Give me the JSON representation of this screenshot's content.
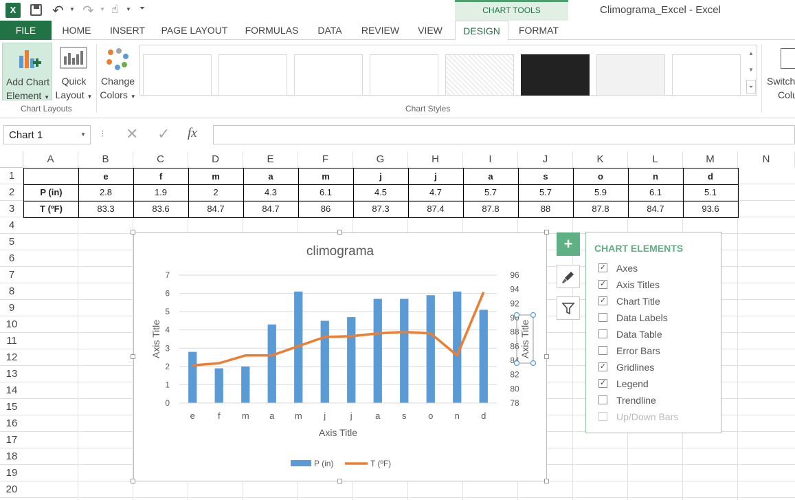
{
  "window": {
    "title": "Climograma_Excel - Excel",
    "contextual_group": "CHART TOOLS"
  },
  "tabs": [
    "FILE",
    "HOME",
    "INSERT",
    "PAGE LAYOUT",
    "FORMULAS",
    "DATA",
    "REVIEW",
    "VIEW",
    "DESIGN",
    "FORMAT"
  ],
  "ribbon": {
    "add_chart_element": [
      "Add Chart",
      "Element"
    ],
    "quick_layout": [
      "Quick",
      "Layout"
    ],
    "change_colors": [
      "Change",
      "Colors"
    ],
    "switch_row_col": [
      "Switch",
      "Colu"
    ],
    "group_chart_layouts": "Chart Layouts",
    "group_chart_styles": "Chart Styles"
  },
  "formula_bar": {
    "name_box": "Chart 1",
    "fx": "fx",
    "value": ""
  },
  "columns": [
    "A",
    "B",
    "C",
    "D",
    "E",
    "F",
    "G",
    "H",
    "I",
    "J",
    "K",
    "L",
    "M",
    "N"
  ],
  "rows": [
    "1",
    "2",
    "3",
    "4",
    "5",
    "6",
    "7",
    "8",
    "9",
    "10",
    "11",
    "12",
    "13",
    "14",
    "15",
    "16",
    "17",
    "18",
    "19",
    "20"
  ],
  "sheet": {
    "row1": [
      "",
      "e",
      "f",
      "m",
      "a",
      "m",
      "j",
      "j",
      "a",
      "s",
      "o",
      "n",
      "d"
    ],
    "row2": [
      "P (in)",
      "2.8",
      "1.9",
      "2",
      "4.3",
      "6.1",
      "4.5",
      "4.7",
      "5.7",
      "5.7",
      "5.9",
      "6.1",
      "5.1"
    ],
    "row3": [
      "T (ºF)",
      "83.3",
      "83.6",
      "84.7",
      "84.7",
      "86",
      "87.3",
      "87.4",
      "87.8",
      "88",
      "87.8",
      "84.7",
      "93.6"
    ]
  },
  "chart_data": {
    "type": "bar",
    "title": "climograma",
    "xlabel": "Axis Title",
    "ylabel": "Axis Title",
    "y2label": "Axis Title",
    "categories": [
      "e",
      "f",
      "m",
      "a",
      "m",
      "j",
      "j",
      "a",
      "s",
      "o",
      "n",
      "d"
    ],
    "ylim": [
      0,
      7
    ],
    "y_ticks": [
      "0",
      "1",
      "2",
      "3",
      "4",
      "5",
      "6",
      "7"
    ],
    "y2lim": [
      78,
      96
    ],
    "y2_ticks": [
      "78",
      "80",
      "82",
      "84",
      "86",
      "88",
      "90",
      "92",
      "94",
      "96"
    ],
    "series": [
      {
        "name": "P (in)",
        "type": "bar",
        "axis": "left",
        "color": "#5b9bd5",
        "values": [
          2.8,
          1.9,
          2,
          4.3,
          6.1,
          4.5,
          4.7,
          5.7,
          5.7,
          5.9,
          6.1,
          5.1
        ]
      },
      {
        "name": "T (ºF)",
        "type": "line",
        "axis": "right",
        "color": "#ed7d31",
        "values": [
          83.3,
          83.6,
          84.7,
          84.7,
          86,
          87.3,
          87.4,
          87.8,
          88,
          87.8,
          84.7,
          93.6
        ]
      }
    ],
    "gridlines": true,
    "legend_position": "bottom"
  },
  "chart_elements_panel": {
    "title": "CHART ELEMENTS",
    "items": [
      {
        "label": "Axes",
        "checked": true
      },
      {
        "label": "Axis Titles",
        "checked": true
      },
      {
        "label": "Chart Title",
        "checked": true
      },
      {
        "label": "Data Labels",
        "checked": false
      },
      {
        "label": "Data Table",
        "checked": false
      },
      {
        "label": "Error Bars",
        "checked": false
      },
      {
        "label": "Gridlines",
        "checked": true
      },
      {
        "label": "Legend",
        "checked": true
      },
      {
        "label": "Trendline",
        "checked": false
      },
      {
        "label": "Up/Down Bars",
        "checked": false,
        "disabled": true
      }
    ]
  },
  "colors": {
    "excel_green": "#217346",
    "accent_panel": "#4ea16f",
    "bar": "#5b9bd5",
    "line": "#ed7d31"
  }
}
